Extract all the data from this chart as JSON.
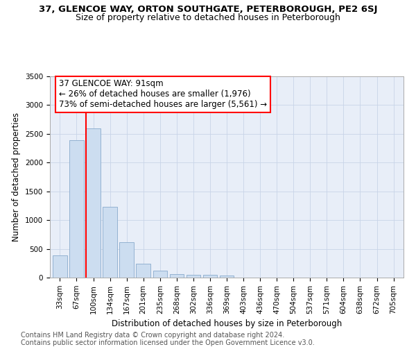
{
  "title1": "37, GLENCOE WAY, ORTON SOUTHGATE, PETERBOROUGH, PE2 6SJ",
  "title2": "Size of property relative to detached houses in Peterborough",
  "xlabel": "Distribution of detached houses by size in Peterborough",
  "ylabel": "Number of detached properties",
  "footnote1": "Contains HM Land Registry data © Crown copyright and database right 2024.",
  "footnote2": "Contains public sector information licensed under the Open Government Licence v3.0.",
  "bar_categories": [
    "33sqm",
    "67sqm",
    "100sqm",
    "134sqm",
    "167sqm",
    "201sqm",
    "235sqm",
    "268sqm",
    "302sqm",
    "336sqm",
    "369sqm",
    "403sqm",
    "436sqm",
    "470sqm",
    "504sqm",
    "537sqm",
    "571sqm",
    "604sqm",
    "638sqm",
    "672sqm",
    "705sqm"
  ],
  "bar_values": [
    390,
    2390,
    2590,
    1230,
    620,
    240,
    120,
    55,
    50,
    45,
    40,
    0,
    0,
    0,
    0,
    0,
    0,
    0,
    0,
    0,
    0
  ],
  "bar_color": "#ccddf0",
  "bar_edge_color": "#88aacc",
  "vline_x_idx": 2,
  "vline_color": "red",
  "annotation_line1": "37 GLENCOE WAY: 91sqm",
  "annotation_line2": "← 26% of detached houses are smaller (1,976)",
  "annotation_line3": "73% of semi-detached houses are larger (5,561) →",
  "box_edge_color": "red",
  "ylim": [
    0,
    3500
  ],
  "yticks": [
    0,
    500,
    1000,
    1500,
    2000,
    2500,
    3000,
    3500
  ],
  "grid_color": "#c8d4e8",
  "bg_color": "#e8eef8",
  "title1_fontsize": 9.5,
  "title2_fontsize": 9,
  "axis_label_fontsize": 8.5,
  "tick_fontsize": 7.5,
  "footnote_fontsize": 7,
  "annotation_fontsize": 8.5
}
